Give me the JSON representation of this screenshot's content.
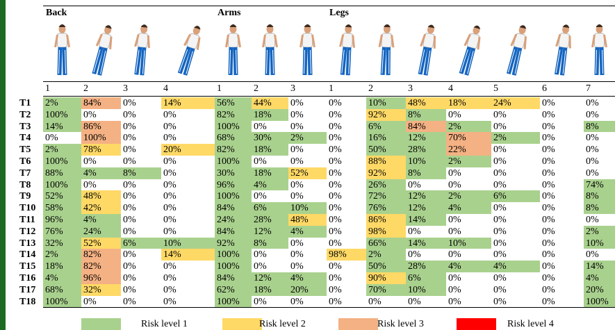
{
  "table": {
    "groups": [
      {
        "label": "Back",
        "columns": [
          "1",
          "2",
          "3",
          "4"
        ]
      },
      {
        "label": "Arms",
        "columns": [
          "1",
          "2",
          "3"
        ]
      },
      {
        "label": "Legs",
        "columns": [
          "1",
          "2",
          "3",
          "4",
          "5",
          "6",
          "7"
        ]
      }
    ],
    "rows": [
      {
        "label": "T1",
        "cells": [
          "2%",
          "84%",
          "0%",
          "14%",
          "56%",
          "44%",
          "0%",
          "0%",
          "10%",
          "48%",
          "18%",
          "24%",
          "0%",
          "0%"
        ],
        "levels": [
          1,
          3,
          null,
          2,
          1,
          2,
          null,
          null,
          1,
          2,
          2,
          2,
          null,
          null
        ]
      },
      {
        "label": "T2",
        "cells": [
          "100%",
          "0%",
          "0%",
          "0%",
          "82%",
          "18%",
          "0%",
          "0%",
          "92%",
          "8%",
          "0%",
          "0%",
          "0%",
          "0%"
        ],
        "levels": [
          1,
          null,
          null,
          null,
          1,
          1,
          null,
          null,
          2,
          1,
          null,
          null,
          null,
          null
        ]
      },
      {
        "label": "T3",
        "cells": [
          "14%",
          "86%",
          "0%",
          "0%",
          "100%",
          "0%",
          "0%",
          "0%",
          "6%",
          "84%",
          "2%",
          "0%",
          "0%",
          "8%"
        ],
        "levels": [
          1,
          3,
          null,
          null,
          1,
          null,
          null,
          null,
          1,
          3,
          1,
          null,
          null,
          1
        ]
      },
      {
        "label": "T4",
        "cells": [
          "0%",
          "100%",
          "0%",
          "0%",
          "68%",
          "30%",
          "2%",
          "0%",
          "16%",
          "12%",
          "70%",
          "2%",
          "0%",
          "0%"
        ],
        "levels": [
          null,
          3,
          null,
          null,
          1,
          1,
          1,
          null,
          1,
          1,
          3,
          1,
          null,
          null
        ]
      },
      {
        "label": "T5",
        "cells": [
          "2%",
          "78%",
          "0%",
          "20%",
          "82%",
          "18%",
          "0%",
          "0%",
          "50%",
          "28%",
          "22%",
          "0%",
          "0%",
          "0%"
        ],
        "levels": [
          1,
          2,
          null,
          2,
          1,
          1,
          null,
          null,
          1,
          1,
          3,
          null,
          null,
          null
        ]
      },
      {
        "label": "T6",
        "cells": [
          "100%",
          "0%",
          "0%",
          "0%",
          "100%",
          "0%",
          "0%",
          "0%",
          "88%",
          "10%",
          "2%",
          "0%",
          "0%",
          "0%"
        ],
        "levels": [
          1,
          null,
          null,
          null,
          1,
          null,
          null,
          null,
          2,
          1,
          1,
          null,
          null,
          null
        ]
      },
      {
        "label": "T7",
        "cells": [
          "88%",
          "4%",
          "8%",
          "0%",
          "30%",
          "18%",
          "52%",
          "0%",
          "92%",
          "8%",
          "0%",
          "0%",
          "0%",
          "0%"
        ],
        "levels": [
          1,
          1,
          1,
          null,
          1,
          1,
          2,
          null,
          2,
          1,
          null,
          null,
          null,
          null
        ]
      },
      {
        "label": "T8",
        "cells": [
          "100%",
          "0%",
          "0%",
          "0%",
          "96%",
          "4%",
          "0%",
          "0%",
          "26%",
          "0%",
          "0%",
          "0%",
          "0%",
          "74%"
        ],
        "levels": [
          1,
          null,
          null,
          null,
          1,
          1,
          null,
          null,
          1,
          null,
          null,
          null,
          null,
          1
        ]
      },
      {
        "label": "T9",
        "cells": [
          "52%",
          "48%",
          "0%",
          "0%",
          "100%",
          "0%",
          "0%",
          "0%",
          "72%",
          "12%",
          "2%",
          "6%",
          "0%",
          "8%"
        ],
        "levels": [
          1,
          2,
          null,
          null,
          1,
          null,
          null,
          null,
          1,
          1,
          1,
          1,
          null,
          1
        ]
      },
      {
        "label": "T10",
        "cells": [
          "58%",
          "42%",
          "0%",
          "0%",
          "84%",
          "6%",
          "10%",
          "0%",
          "76%",
          "12%",
          "4%",
          "0%",
          "0%",
          "8%"
        ],
        "levels": [
          1,
          2,
          null,
          null,
          1,
          1,
          1,
          null,
          1,
          1,
          1,
          null,
          null,
          1
        ]
      },
      {
        "label": "T11",
        "cells": [
          "96%",
          "4%",
          "0%",
          "0%",
          "24%",
          "28%",
          "48%",
          "0%",
          "86%",
          "14%",
          "0%",
          "0%",
          "0%",
          "0%"
        ],
        "levels": [
          1,
          1,
          null,
          null,
          1,
          1,
          2,
          null,
          2,
          1,
          null,
          null,
          null,
          null
        ]
      },
      {
        "label": "T12",
        "cells": [
          "76%",
          "24%",
          "0%",
          "0%",
          "84%",
          "12%",
          "4%",
          "0%",
          "98%",
          "0%",
          "0%",
          "0%",
          "0%",
          "2%"
        ],
        "levels": [
          1,
          1,
          null,
          null,
          1,
          1,
          1,
          null,
          2,
          null,
          null,
          null,
          null,
          1
        ]
      },
      {
        "label": "T13",
        "cells": [
          "32%",
          "52%",
          "6%",
          "10%",
          "92%",
          "8%",
          "0%",
          "0%",
          "66%",
          "14%",
          "10%",
          "0%",
          "0%",
          "10%"
        ],
        "levels": [
          1,
          2,
          1,
          1,
          1,
          1,
          null,
          null,
          1,
          1,
          1,
          null,
          null,
          1
        ]
      },
      {
        "label": "T14",
        "cells": [
          "2%",
          "82%",
          "0%",
          "14%",
          "100%",
          "0%",
          "0%",
          "98%",
          "2%",
          "0%",
          "0%",
          "0%",
          "0%",
          "0%"
        ],
        "levels": [
          1,
          3,
          null,
          2,
          1,
          null,
          null,
          2,
          1,
          null,
          null,
          null,
          null,
          null
        ]
      },
      {
        "label": "T15",
        "cells": [
          "18%",
          "82%",
          "0%",
          "0%",
          "100%",
          "0%",
          "0%",
          "0%",
          "50%",
          "28%",
          "4%",
          "4%",
          "0%",
          "14%"
        ],
        "levels": [
          1,
          3,
          null,
          null,
          1,
          null,
          null,
          null,
          1,
          1,
          1,
          1,
          null,
          1
        ]
      },
      {
        "label": "T16",
        "cells": [
          "4%",
          "96%",
          "0%",
          "0%",
          "84%",
          "12%",
          "4%",
          "0%",
          "90%",
          "6%",
          "0%",
          "0%",
          "0%",
          "4%"
        ],
        "levels": [
          1,
          3,
          null,
          null,
          1,
          1,
          1,
          null,
          2,
          1,
          null,
          null,
          null,
          1
        ]
      },
      {
        "label": "T17",
        "cells": [
          "68%",
          "32%",
          "0%",
          "0%",
          "62%",
          "18%",
          "20%",
          "0%",
          "70%",
          "10%",
          "0%",
          "0%",
          "0%",
          "20%"
        ],
        "levels": [
          1,
          2,
          null,
          null,
          1,
          1,
          1,
          null,
          1,
          1,
          null,
          null,
          null,
          1
        ]
      },
      {
        "label": "T18",
        "cells": [
          "100%",
          "0%",
          "0%",
          "0%",
          "100%",
          "0%",
          "0%",
          "0%",
          "0%",
          "0%",
          "0%",
          "0%",
          "0%",
          "100%"
        ],
        "levels": [
          1,
          null,
          null,
          null,
          1,
          null,
          null,
          null,
          null,
          null,
          null,
          null,
          null,
          1
        ]
      }
    ]
  },
  "legend": [
    {
      "label": "Risk level 1",
      "color": "#a9d18e"
    },
    {
      "label": "Risk level 2",
      "color": "#ffd966"
    },
    {
      "label": "Risk level 3",
      "color": "#f4b183"
    },
    {
      "label": "Risk level 4",
      "color": "#ff0000"
    }
  ]
}
